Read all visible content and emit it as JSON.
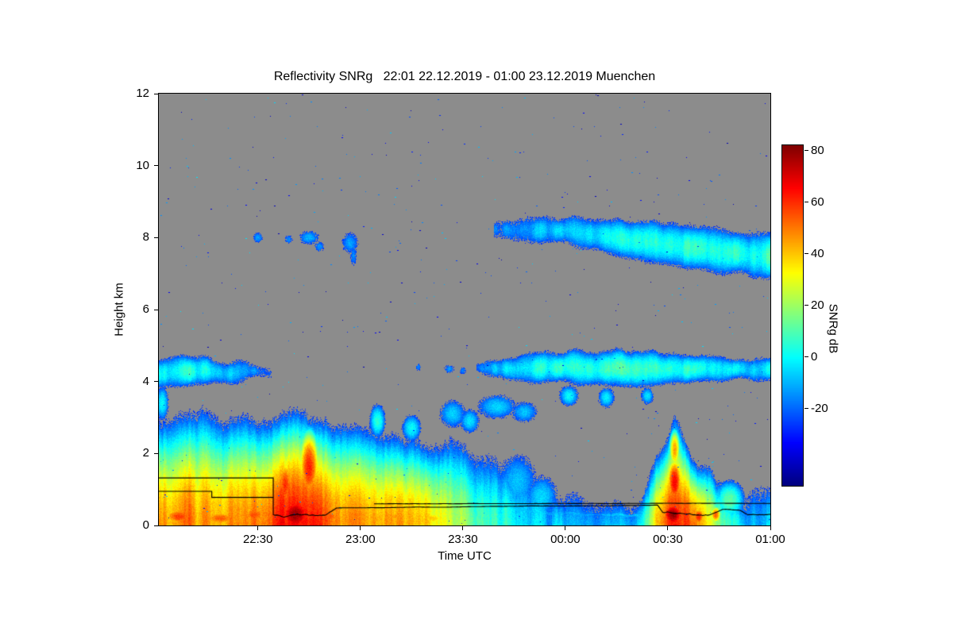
{
  "chart": {
    "title": "Reflectivity SNRg   22:01 22.12.2019 - 01:00 23.12.2019 Muenchen"
  },
  "chart_data": {
    "type": "heatmap",
    "title": "Reflectivity SNRg   22:01 22.12.2019 - 01:00 23.12.2019 Muenchen",
    "xlabel": "Time UTC",
    "ylabel": "Height km",
    "x_start": "22:01",
    "x_end": "01:00",
    "x_total_minutes": 179,
    "x_ticks": [
      {
        "label": "22:30",
        "minute": 29
      },
      {
        "label": "23:00",
        "minute": 59
      },
      {
        "label": "23:30",
        "minute": 89
      },
      {
        "label": "00:00",
        "minute": 119
      },
      {
        "label": "00:30",
        "minute": 149
      },
      {
        "label": "01:00",
        "minute": 179
      }
    ],
    "ylim": [
      0,
      12
    ],
    "y_ticks": [
      {
        "label": "0",
        "km": 0
      },
      {
        "label": "2",
        "km": 2
      },
      {
        "label": "4",
        "km": 4
      },
      {
        "label": "6",
        "km": 6
      },
      {
        "label": "8",
        "km": 8
      },
      {
        "label": "10",
        "km": 10
      },
      {
        "label": "12",
        "km": 12
      }
    ],
    "background_no_signal": "#8c8c8c",
    "colorbar": {
      "label": "SNRg dB",
      "colormap": "jet",
      "min": -50,
      "max": 82,
      "ticks": [
        {
          "label": "80",
          "value": 80
        },
        {
          "label": "60",
          "value": 60
        },
        {
          "label": "40",
          "value": 40
        },
        {
          "label": "20",
          "value": 20
        },
        {
          "label": "0",
          "value": 0
        },
        {
          "label": "-20",
          "value": -20
        }
      ]
    },
    "bands": [
      {
        "name": "main-precip-band",
        "pts": [
          [
            0,
            3.0,
            46
          ],
          [
            6,
            3.1,
            50
          ],
          [
            12,
            3.2,
            46
          ],
          [
            18,
            3.1,
            44
          ],
          [
            24,
            3.0,
            46
          ],
          [
            30,
            3.0,
            52
          ],
          [
            34,
            3.0,
            58
          ],
          [
            38,
            3.2,
            66
          ],
          [
            42,
            3.2,
            68
          ],
          [
            46,
            3.0,
            62
          ],
          [
            50,
            2.9,
            52
          ],
          [
            56,
            2.8,
            46
          ],
          [
            62,
            2.7,
            44
          ],
          [
            68,
            2.5,
            46
          ],
          [
            74,
            2.4,
            40
          ],
          [
            80,
            2.3,
            32
          ],
          [
            86,
            2.35,
            24
          ],
          [
            92,
            2.1,
            14
          ],
          [
            98,
            1.9,
            6
          ],
          [
            104,
            1.6,
            0
          ],
          [
            110,
            1.4,
            -6
          ],
          [
            115,
            1.0,
            -14
          ]
        ]
      },
      {
        "name": "convective-cell-0030",
        "pts": [
          [
            140,
            0.6,
            -10
          ],
          [
            143,
            1.2,
            10
          ],
          [
            146,
            2.0,
            40
          ],
          [
            149,
            2.6,
            58
          ],
          [
            151,
            3.1,
            66
          ],
          [
            153,
            2.8,
            62
          ],
          [
            155,
            2.2,
            52
          ],
          [
            157,
            1.8,
            46
          ],
          [
            159,
            1.6,
            42
          ],
          [
            161,
            1.7,
            36
          ],
          [
            163,
            1.3,
            22
          ],
          [
            166,
            1.0,
            10
          ],
          [
            169,
            0.8,
            0
          ],
          [
            172,
            0.6,
            -10
          ]
        ]
      },
      {
        "name": "weak-low-echo-2356-0020",
        "pts": [
          [
            115,
            0.9,
            -8
          ],
          [
            125,
            0.8,
            -12
          ],
          [
            135,
            0.7,
            -14
          ],
          [
            140,
            0.6,
            -16
          ]
        ]
      },
      {
        "name": "weak-low-echo-0052-0100",
        "pts": [
          [
            172,
            0.9,
            -6
          ],
          [
            176,
            1.0,
            -10
          ],
          [
            179,
            0.8,
            -14
          ]
        ]
      }
    ],
    "layers": [
      {
        "name": "midlevel-cloud-left-4km",
        "pts": [
          [
            0,
            3.85,
            4.65,
            0
          ],
          [
            6,
            3.8,
            4.75,
            4
          ],
          [
            12,
            3.85,
            4.7,
            2
          ],
          [
            18,
            3.9,
            4.6,
            -6
          ],
          [
            24,
            4.0,
            4.55,
            -12
          ],
          [
            30,
            4.05,
            4.45,
            -17
          ],
          [
            33,
            4.1,
            4.35,
            -22
          ]
        ]
      },
      {
        "name": "midlevel-cloud-right-4-5km",
        "pts": [
          [
            93,
            4.3,
            4.55,
            -18
          ],
          [
            98,
            4.15,
            4.6,
            -10
          ],
          [
            104,
            4.0,
            4.7,
            -4
          ],
          [
            110,
            3.95,
            4.8,
            0
          ],
          [
            116,
            3.9,
            4.85,
            3
          ],
          [
            122,
            3.85,
            4.9,
            5
          ],
          [
            128,
            3.8,
            4.9,
            4
          ],
          [
            134,
            3.85,
            4.95,
            6
          ],
          [
            140,
            3.8,
            4.9,
            5
          ],
          [
            146,
            3.85,
            4.85,
            5
          ],
          [
            152,
            3.9,
            4.8,
            4
          ],
          [
            158,
            3.95,
            4.75,
            2
          ],
          [
            164,
            4.0,
            4.7,
            0
          ],
          [
            170,
            4.0,
            4.65,
            -3
          ],
          [
            179,
            4.05,
            4.55,
            -6
          ]
        ]
      },
      {
        "name": "high-cloud-7-8km",
        "pts": [
          [
            98,
            8.05,
            8.45,
            -20
          ],
          [
            104,
            7.9,
            8.5,
            -15
          ],
          [
            110,
            7.85,
            8.55,
            -11
          ],
          [
            118,
            7.75,
            8.6,
            -8
          ],
          [
            126,
            7.6,
            8.6,
            -4
          ],
          [
            134,
            7.45,
            8.55,
            -1
          ],
          [
            142,
            7.3,
            8.5,
            2
          ],
          [
            150,
            7.15,
            8.45,
            4
          ],
          [
            158,
            7.05,
            8.35,
            5
          ],
          [
            166,
            6.95,
            8.25,
            5
          ],
          [
            172,
            6.9,
            8.15,
            4
          ],
          [
            179,
            6.85,
            8.05,
            3
          ]
        ]
      },
      {
        "name": "shallow-persistent-low-echo",
        "pts": [
          [
            94,
            0.22,
            0.38,
            -8
          ],
          [
            144,
            0.22,
            0.38,
            -12
          ]
        ]
      }
    ],
    "cells": [
      {
        "t": 6,
        "h": 0.25,
        "rt": 7,
        "rh": 0.35,
        "peak": 58
      },
      {
        "t": 18,
        "h": 0.2,
        "rt": 8,
        "rh": 0.3,
        "peak": 54
      },
      {
        "t": 28,
        "h": 0.3,
        "rt": 6,
        "rh": 0.4,
        "peak": 55
      },
      {
        "t": 40,
        "h": 0.3,
        "rt": 7,
        "rh": 0.7,
        "peak": 79
      },
      {
        "t": 44,
        "h": 1.6,
        "rt": 4,
        "rh": 1.3,
        "peak": 62
      },
      {
        "t": 37,
        "h": 1.1,
        "rt": 3,
        "rh": 1.0,
        "peak": 60
      },
      {
        "t": 50,
        "h": 0.25,
        "rt": 5,
        "rh": 0.3,
        "peak": 55
      },
      {
        "t": 58,
        "h": 0.3,
        "rt": 8,
        "rh": 0.35,
        "peak": 50
      },
      {
        "t": 70,
        "h": 0.25,
        "rt": 8,
        "rh": 0.3,
        "peak": 46
      },
      {
        "t": 80,
        "h": 0.2,
        "rt": 6,
        "rh": 0.25,
        "peak": 40
      },
      {
        "t": 64,
        "h": 2.9,
        "rt": 2.5,
        "rh": 0.5,
        "peak": 5
      },
      {
        "t": 74,
        "h": 2.7,
        "rt": 3,
        "rh": 0.4,
        "peak": 0
      },
      {
        "t": 1,
        "h": 3.4,
        "rt": 2,
        "rh": 0.5,
        "peak": 0
      },
      {
        "t": 150.5,
        "h": 0.3,
        "rt": 4.5,
        "rh": 0.5,
        "peak": 80
      },
      {
        "t": 151,
        "h": 1.2,
        "rt": 3,
        "rh": 0.9,
        "peak": 66
      },
      {
        "t": 151,
        "h": 2.1,
        "rt": 2,
        "rh": 0.7,
        "peak": 45
      },
      {
        "t": 158,
        "h": 0.25,
        "rt": 2.5,
        "rh": 0.35,
        "peak": 62
      },
      {
        "t": 163,
        "h": 0.3,
        "rt": 2,
        "rh": 0.3,
        "peak": 54
      },
      {
        "t": 167,
        "h": 0.7,
        "rt": 5,
        "rh": 0.6,
        "peak": 12
      },
      {
        "t": 99,
        "h": 3.3,
        "rt": 6,
        "rh": 0.35,
        "peak": -6
      },
      {
        "t": 107,
        "h": 3.15,
        "rt": 4,
        "rh": 0.3,
        "peak": -8
      },
      {
        "t": 86,
        "h": 3.1,
        "rt": 4,
        "rh": 0.4,
        "peak": -6
      },
      {
        "t": 91,
        "h": 2.9,
        "rt": 3,
        "rh": 0.35,
        "peak": -4
      },
      {
        "t": 120,
        "h": 3.6,
        "rt": 3,
        "rh": 0.3,
        "peak": 0
      },
      {
        "t": 131,
        "h": 3.55,
        "rt": 2.5,
        "rh": 0.3,
        "peak": -2
      },
      {
        "t": 143,
        "h": 3.6,
        "rt": 2,
        "rh": 0.25,
        "peak": -4
      },
      {
        "t": 105,
        "h": 1.2,
        "rt": 6,
        "rh": 0.8,
        "peak": -8
      },
      {
        "t": 112,
        "h": 0.8,
        "rt": 5,
        "rh": 0.6,
        "peak": -5
      },
      {
        "t": 29,
        "h": 8.0,
        "rt": 1.5,
        "rh": 0.15,
        "peak": -12
      },
      {
        "t": 38,
        "h": 7.95,
        "rt": 1.2,
        "rh": 0.12,
        "peak": -15
      },
      {
        "t": 44,
        "h": 8.0,
        "rt": 3,
        "rh": 0.2,
        "peak": -10
      },
      {
        "t": 47,
        "h": 7.75,
        "rt": 1.5,
        "rh": 0.15,
        "peak": -14
      },
      {
        "t": 56,
        "h": 7.85,
        "rt": 2.5,
        "rh": 0.3,
        "peak": -12
      },
      {
        "t": 57,
        "h": 7.5,
        "rt": 1,
        "rh": 0.3,
        "peak": -16
      },
      {
        "t": 76,
        "h": 4.4,
        "rt": 0.8,
        "rh": 0.1,
        "peak": -16
      },
      {
        "t": 85,
        "h": 4.35,
        "rt": 1.5,
        "rh": 0.12,
        "peak": -14
      },
      {
        "t": 89,
        "h": 4.3,
        "rt": 1,
        "rh": 0.1,
        "peak": -16
      }
    ],
    "speckle_count": 550,
    "sensor_lines": [
      [
        [
          0,
          1.32,
          0
        ],
        [
          33.5,
          1.32,
          0
        ],
        [
          33.5,
          0.3,
          0.04
        ],
        [
          49,
          0.28,
          0.015
        ],
        [
          52,
          0.46,
          0.004
        ],
        [
          146,
          0.5,
          0.01
        ],
        [
          147.5,
          0.3,
          0.04
        ],
        [
          161,
          0.32,
          0.015
        ],
        [
          165,
          0.46,
          0.02
        ],
        [
          170,
          0.42,
          0.01
        ],
        [
          172.5,
          0.28,
          0.015
        ],
        [
          179,
          0.28,
          0
        ]
      ],
      [
        [
          0,
          0.95,
          0
        ],
        [
          15.5,
          0.95,
          0
        ],
        [
          15.5,
          0.78,
          0
        ],
        [
          33.5,
          0.78,
          0
        ]
      ],
      [
        [
          63,
          0.6,
          0.003
        ],
        [
          179,
          0.6,
          0
        ]
      ]
    ]
  }
}
